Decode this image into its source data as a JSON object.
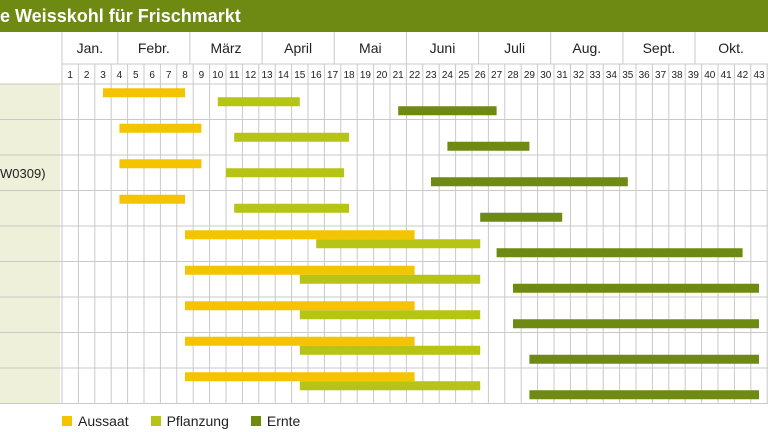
{
  "title": "e Weisskohl für Frischmarkt",
  "chart_data": {
    "type": "gantt",
    "title": "e Weisskohl für Frischmarkt",
    "x_unit": "week",
    "xlim": [
      1,
      43
    ],
    "months": [
      {
        "label": "Jan.",
        "start": 1,
        "end": 4.4
      },
      {
        "label": "Febr.",
        "start": 4.4,
        "end": 8.8
      },
      {
        "label": "März",
        "start": 8.8,
        "end": 13.2
      },
      {
        "label": "April",
        "start": 13.2,
        "end": 17.6
      },
      {
        "label": "Mai",
        "start": 17.6,
        "end": 22
      },
      {
        "label": "Juni",
        "start": 22,
        "end": 26.4
      },
      {
        "label": "Juli",
        "start": 26.4,
        "end": 30.8
      },
      {
        "label": "Aug.",
        "start": 30.8,
        "end": 35.2
      },
      {
        "label": "Sept.",
        "start": 35.2,
        "end": 39.6
      },
      {
        "label": "Okt.",
        "start": 39.6,
        "end": 44
      }
    ],
    "weeks": [
      1,
      2,
      3,
      4,
      5,
      6,
      7,
      8,
      9,
      10,
      11,
      12,
      13,
      14,
      15,
      16,
      17,
      18,
      19,
      20,
      21,
      22,
      23,
      24,
      25,
      26,
      27,
      28,
      29,
      30,
      31,
      32,
      33,
      34,
      35,
      36,
      37,
      38,
      39,
      40,
      41,
      42,
      43
    ],
    "rows": [
      {
        "label": ""
      },
      {
        "label": ""
      },
      {
        "label": "W0309)"
      },
      {
        "label": ""
      },
      {
        "label": ""
      },
      {
        "label": ""
      },
      {
        "label": ""
      },
      {
        "label": ""
      },
      {
        "label": ""
      }
    ],
    "series": [
      {
        "name": "Aussaat",
        "color": "#f5c400"
      },
      {
        "name": "Pflanzung",
        "color": "#b6c416"
      },
      {
        "name": "Ernte",
        "color": "#6e8a12"
      }
    ],
    "bars": [
      {
        "row": 0,
        "series": 0,
        "start": 3,
        "end": 8
      },
      {
        "row": 0,
        "series": 1,
        "start": 10,
        "end": 15
      },
      {
        "row": 0,
        "series": 2,
        "start": 21,
        "end": 27
      },
      {
        "row": 1,
        "series": 0,
        "start": 4,
        "end": 9
      },
      {
        "row": 1,
        "series": 1,
        "start": 11,
        "end": 18
      },
      {
        "row": 1,
        "series": 2,
        "start": 24,
        "end": 29
      },
      {
        "row": 2,
        "series": 0,
        "start": 4,
        "end": 9
      },
      {
        "row": 2,
        "series": 1,
        "start": 10.5,
        "end": 17.7
      },
      {
        "row": 2,
        "series": 2,
        "start": 23,
        "end": 35
      },
      {
        "row": 3,
        "series": 0,
        "start": 4,
        "end": 8
      },
      {
        "row": 3,
        "series": 1,
        "start": 11,
        "end": 18
      },
      {
        "row": 3,
        "series": 2,
        "start": 26,
        "end": 31
      },
      {
        "row": 4,
        "series": 0,
        "start": 8,
        "end": 22
      },
      {
        "row": 4,
        "series": 1,
        "start": 16,
        "end": 26
      },
      {
        "row": 4,
        "series": 2,
        "start": 27,
        "end": 42
      },
      {
        "row": 5,
        "series": 0,
        "start": 8,
        "end": 22
      },
      {
        "row": 5,
        "series": 1,
        "start": 15,
        "end": 26
      },
      {
        "row": 5,
        "series": 2,
        "start": 28,
        "end": 43
      },
      {
        "row": 6,
        "series": 0,
        "start": 8,
        "end": 22
      },
      {
        "row": 6,
        "series": 1,
        "start": 15,
        "end": 26
      },
      {
        "row": 6,
        "series": 2,
        "start": 28,
        "end": 43
      },
      {
        "row": 7,
        "series": 0,
        "start": 8,
        "end": 22
      },
      {
        "row": 7,
        "series": 1,
        "start": 15,
        "end": 26
      },
      {
        "row": 7,
        "series": 2,
        "start": 29,
        "end": 43
      },
      {
        "row": 8,
        "series": 0,
        "start": 8,
        "end": 22
      },
      {
        "row": 8,
        "series": 1,
        "start": 15,
        "end": 26
      },
      {
        "row": 8,
        "series": 2,
        "start": 29,
        "end": 43
      }
    ],
    "legend": {
      "position": "bottom-left"
    },
    "grid": true
  }
}
